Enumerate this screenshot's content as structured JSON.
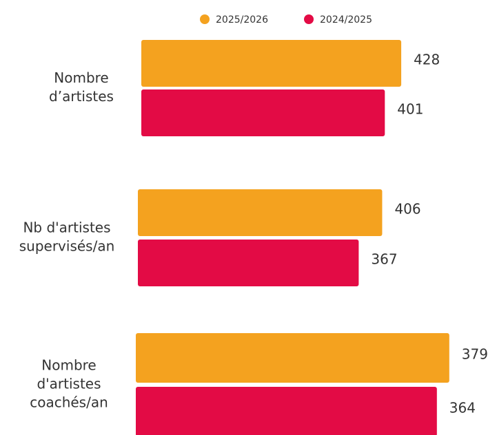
{
  "chart_data": {
    "type": "bar",
    "orientation": "horizontal",
    "categories": [
      [
        "Nombre",
        "d’artistes"
      ],
      [
        "Nb d'artistes",
        "supervisés/an"
      ],
      [
        "Nombre",
        "d'artistes",
        "coachés/an"
      ]
    ],
    "series": [
      {
        "name": "2025/2026",
        "color": "#f4a21f",
        "values": [
          428,
          406,
          379
        ]
      },
      {
        "name": "2024/2025",
        "color": "#e30b45",
        "values": [
          401,
          367,
          364
        ]
      }
    ]
  }
}
